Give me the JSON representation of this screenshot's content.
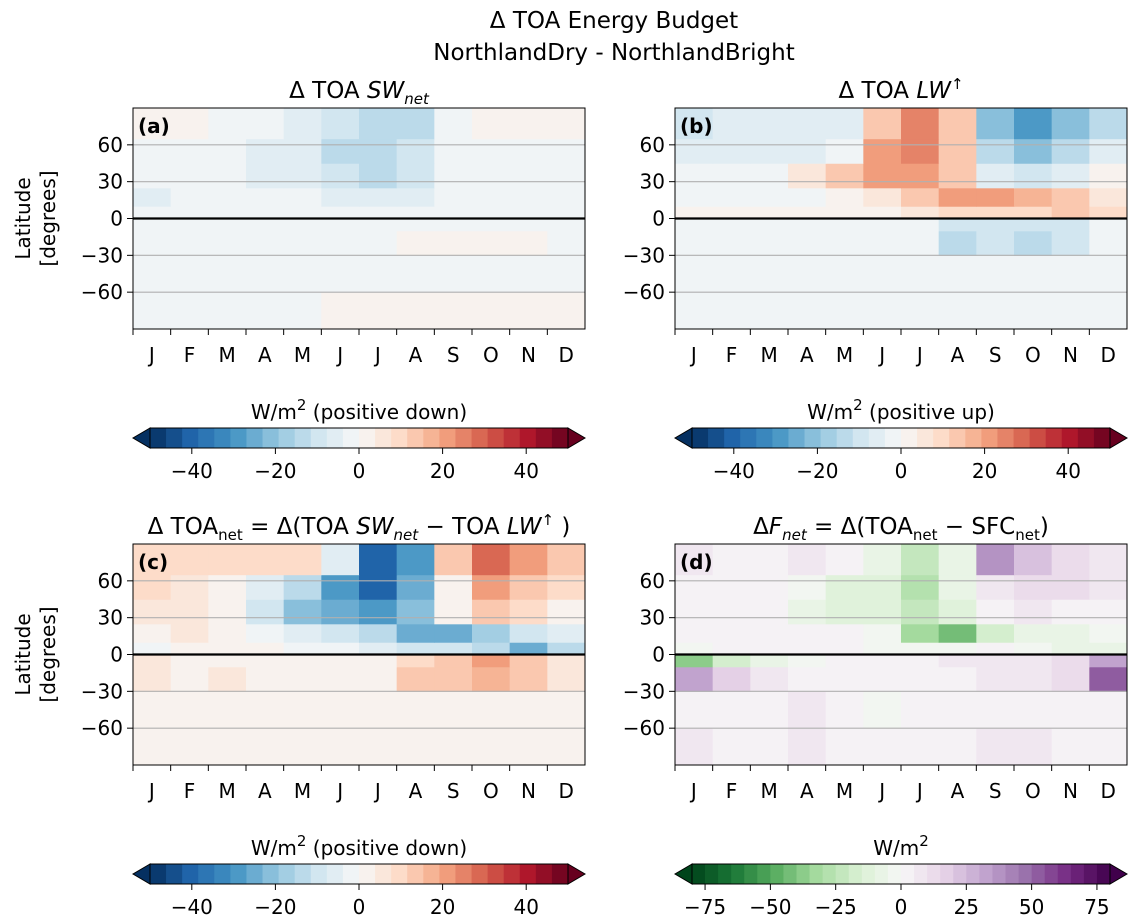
{
  "suptitle": [
    "Δ TOA Energy Budget",
    "NorthlandDry - NorthlandBright"
  ],
  "chart_data": [
    {
      "type": "heatmap",
      "panel_label": "(a)",
      "title": [
        "Δ TOA ",
        "SW",
        "net"
      ],
      "title_styles": [
        "normal",
        "italic",
        "italic-sub"
      ],
      "ylabel": [
        "Latitude",
        "[degrees]"
      ],
      "categories": [
        "J",
        "F",
        "M",
        "A",
        "M",
        "J",
        "J",
        "A",
        "S",
        "O",
        "N",
        "D"
      ],
      "ybins": [
        -90,
        -60,
        -30,
        -10,
        0,
        10,
        25,
        45,
        65,
        90
      ],
      "values": [
        [
          -1,
          -1,
          -1,
          -1,
          -1,
          1,
          1,
          1,
          0,
          0,
          0,
          0
        ],
        [
          -1,
          -1,
          -1,
          -1,
          -1,
          -1,
          -1,
          -1,
          -1,
          -1,
          -1,
          -1
        ],
        [
          -1,
          -1,
          -1,
          -1,
          -1,
          -1,
          -1,
          2,
          2,
          2,
          2,
          -1
        ],
        [
          -1,
          -1,
          -1,
          -1,
          -1,
          -1,
          -1,
          -1,
          -1,
          -1,
          -1,
          -1
        ],
        [
          -3,
          -1,
          -1,
          -1,
          -2,
          -3,
          -3,
          -2,
          -1,
          -2,
          -3,
          -3
        ],
        [
          -4,
          -1,
          -1,
          -2,
          -3,
          -5,
          -5,
          -4,
          -2,
          -2,
          -3,
          -3
        ],
        [
          -1,
          -1,
          -3,
          -4,
          -6,
          -10,
          -12,
          -8,
          -3,
          -1,
          -1,
          -1
        ],
        [
          -1,
          -1,
          -2,
          -4,
          -6,
          -12,
          -14,
          -10,
          -3,
          -1,
          -1,
          -1
        ],
        [
          0,
          2,
          -1,
          -2,
          -4,
          -10,
          -15,
          -12,
          -1,
          0,
          2,
          2
        ]
      ],
      "ylim": [
        -90,
        90
      ],
      "yticks": [
        {
          "value": -60,
          "label": "−60"
        },
        {
          "value": -30,
          "label": "−30"
        },
        0,
        30,
        60
      ],
      "grid": true,
      "hline": 0,
      "colorbar": {
        "label": [
          "W/m",
          "2",
          " (positive down)"
        ],
        "label_styles": [
          "normal",
          "sup",
          "normal"
        ],
        "cmap": "RdBu_r",
        "clim": [
          -50,
          50
        ],
        "levels": 26,
        "extend": "both",
        "ticks": [
          {
            "value": -40,
            "label": "−40"
          },
          {
            "value": -20,
            "label": "−20"
          },
          0,
          20,
          40
        ]
      }
    },
    {
      "type": "heatmap",
      "panel_label": "(b)",
      "title": [
        "Δ TOA ",
        "LW",
        "↑"
      ],
      "title_styles": [
        "normal",
        "italic",
        "sup"
      ],
      "categories": [
        "J",
        "F",
        "M",
        "A",
        "M",
        "J",
        "J",
        "A",
        "S",
        "O",
        "N",
        "D"
      ],
      "ybins": [
        -90,
        -60,
        -30,
        -10,
        0,
        10,
        25,
        45,
        65,
        90
      ],
      "values": [
        [
          -3,
          -3,
          -3,
          -3,
          -3,
          -3,
          -3,
          -3,
          -3,
          -3,
          -3,
          -3
        ],
        [
          -2,
          -2,
          -2,
          -2,
          -2,
          -2,
          -2,
          -2,
          -2,
          -2,
          -2,
          -2
        ],
        [
          -3,
          -3,
          -3,
          -3,
          -3,
          -3,
          -3,
          -12,
          -10,
          -12,
          -8,
          -3
        ],
        [
          -3,
          -3,
          -3,
          -3,
          -3,
          -3,
          -3,
          -8,
          -8,
          -8,
          -8,
          -3
        ],
        [
          2,
          0,
          0,
          0,
          0,
          3,
          5,
          8,
          8,
          10,
          15,
          8
        ],
        [
          -3,
          -2,
          -2,
          -2,
          0,
          5,
          12,
          20,
          22,
          18,
          15,
          5
        ],
        [
          -2,
          -2,
          -2,
          5,
          12,
          20,
          22,
          15,
          -5,
          -10,
          -5,
          3
        ],
        [
          -5,
          -5,
          -5,
          -5,
          -3,
          20,
          25,
          15,
          -15,
          -20,
          -15,
          -5
        ],
        [
          -8,
          -5,
          -5,
          -5,
          -5,
          15,
          25,
          15,
          -20,
          -30,
          -20,
          -12
        ]
      ],
      "ylim": [
        -90,
        90
      ],
      "yticks": [
        {
          "value": -60,
          "label": "−60"
        },
        {
          "value": -30,
          "label": "−30"
        },
        0,
        30,
        60
      ],
      "grid": true,
      "hline": 0,
      "colorbar": {
        "label": [
          "W/m",
          "2",
          " (positive up)"
        ],
        "label_styles": [
          "normal",
          "sup",
          "normal"
        ],
        "cmap": "RdBu_r",
        "clim": [
          -50,
          50
        ],
        "levels": 26,
        "extend": "both",
        "ticks": [
          {
            "value": -40,
            "label": "−40"
          },
          {
            "value": -20,
            "label": "−20"
          },
          0,
          20,
          40
        ]
      }
    },
    {
      "type": "heatmap",
      "panel_label": "(c)",
      "title": [
        "Δ TOA",
        "net",
        " = Δ(TOA ",
        "SW",
        "net",
        " − TOA ",
        "LW",
        "↑",
        " )"
      ],
      "title_styles": [
        "normal",
        "sub",
        "normal",
        "italic",
        "italic-sub",
        "normal",
        "italic",
        "sup",
        "normal"
      ],
      "ylabel": [
        "Latitude",
        "[degrees]"
      ],
      "categories": [
        "J",
        "F",
        "M",
        "A",
        "M",
        "J",
        "J",
        "A",
        "S",
        "O",
        "N",
        "D"
      ],
      "ybins": [
        -90,
        -60,
        -30,
        -10,
        0,
        10,
        25,
        45,
        65,
        90
      ],
      "values": [
        [
          3,
          3,
          3,
          3,
          3,
          3,
          3,
          3,
          3,
          3,
          3,
          3
        ],
        [
          2,
          2,
          2,
          2,
          2,
          2,
          2,
          2,
          2,
          2,
          2,
          2
        ],
        [
          5,
          3,
          5,
          2,
          2,
          2,
          3,
          15,
          15,
          18,
          12,
          5
        ],
        [
          5,
          3,
          3,
          2,
          2,
          2,
          3,
          10,
          12,
          20,
          15,
          5
        ],
        [
          -3,
          0,
          0,
          0,
          -2,
          -3,
          -5,
          -8,
          -8,
          -12,
          -25,
          -15
        ],
        [
          0,
          5,
          0,
          -2,
          -5,
          -10,
          -15,
          -25,
          -25,
          -18,
          -10,
          -5
        ],
        [
          5,
          5,
          1,
          -10,
          -20,
          -25,
          -30,
          -20,
          3,
          15,
          10,
          0
        ],
        [
          8,
          5,
          2,
          -5,
          -15,
          -30,
          -40,
          -25,
          0,
          20,
          15,
          10
        ],
        [
          8,
          8,
          8,
          8,
          8,
          -5,
          -40,
          -30,
          15,
          30,
          20,
          15
        ]
      ],
      "ylim": [
        -90,
        90
      ],
      "yticks": [
        {
          "value": -60,
          "label": "−60"
        },
        {
          "value": -30,
          "label": "−30"
        },
        0,
        30,
        60
      ],
      "grid": true,
      "hline": 0,
      "colorbar": {
        "label": [
          "W/m",
          "2",
          " (positive down)"
        ],
        "label_styles": [
          "normal",
          "sup",
          "normal"
        ],
        "cmap": "RdBu_r",
        "clim": [
          -50,
          50
        ],
        "levels": 26,
        "extend": "both",
        "ticks": [
          {
            "value": -40,
            "label": "−40"
          },
          {
            "value": -20,
            "label": "−20"
          },
          0,
          20,
          40
        ]
      }
    },
    {
      "type": "heatmap",
      "panel_label": "(d)",
      "title": [
        "Δ",
        "F",
        "net",
        " = Δ(TOA",
        "net",
        " − SFC",
        "net",
        ")"
      ],
      "title_styles": [
        "normal",
        "italic",
        "italic-sub",
        "normal",
        "sub",
        "normal",
        "sub",
        "normal"
      ],
      "categories": [
        "J",
        "F",
        "M",
        "A",
        "M",
        "J",
        "J",
        "A",
        "S",
        "O",
        "N",
        "D"
      ],
      "ybins": [
        -90,
        -60,
        -30,
        -10,
        0,
        10,
        25,
        45,
        65,
        90
      ],
      "values": [
        [
          5,
          3,
          3,
          8,
          3,
          3,
          2,
          3,
          5,
          5,
          3,
          3
        ],
        [
          3,
          3,
          3,
          5,
          3,
          -3,
          3,
          3,
          3,
          3,
          3,
          3
        ],
        [
          30,
          15,
          5,
          0,
          2,
          2,
          2,
          3,
          8,
          5,
          10,
          50
        ],
        [
          -40,
          -20,
          -10,
          -5,
          0,
          0,
          0,
          5,
          5,
          8,
          10,
          30
        ],
        [
          -5,
          0,
          0,
          0,
          0,
          -2,
          -3,
          -5,
          0,
          -5,
          -10,
          -10
        ],
        [
          0,
          0,
          0,
          0,
          0,
          -5,
          -35,
          -45,
          -20,
          -10,
          -8,
          -5
        ],
        [
          0,
          0,
          0,
          -10,
          -15,
          -15,
          -25,
          -15,
          0,
          5,
          3,
          0
        ],
        [
          3,
          0,
          0,
          -5,
          -15,
          -15,
          -30,
          -10,
          5,
          12,
          10,
          5
        ],
        [
          5,
          3,
          2,
          5,
          3,
          -10,
          -25,
          -8,
          35,
          20,
          10,
          8
        ]
      ],
      "ylim": [
        -90,
        90
      ],
      "yticks": [
        {
          "value": -60,
          "label": "−60"
        },
        {
          "value": -30,
          "label": "−30"
        },
        0,
        30,
        60
      ],
      "grid": true,
      "hline": 0,
      "colorbar": {
        "label": [
          "W/m",
          "2"
        ],
        "label_styles": [
          "normal",
          "sup"
        ],
        "cmap": "PRGn_r",
        "clim": [
          -80,
          80
        ],
        "levels": 32,
        "extend": "both",
        "ticks": [
          {
            "value": -75,
            "label": "−75"
          },
          {
            "value": -50,
            "label": "−50"
          },
          {
            "value": -25,
            "label": "−25"
          },
          0,
          25,
          50,
          75
        ]
      }
    }
  ]
}
